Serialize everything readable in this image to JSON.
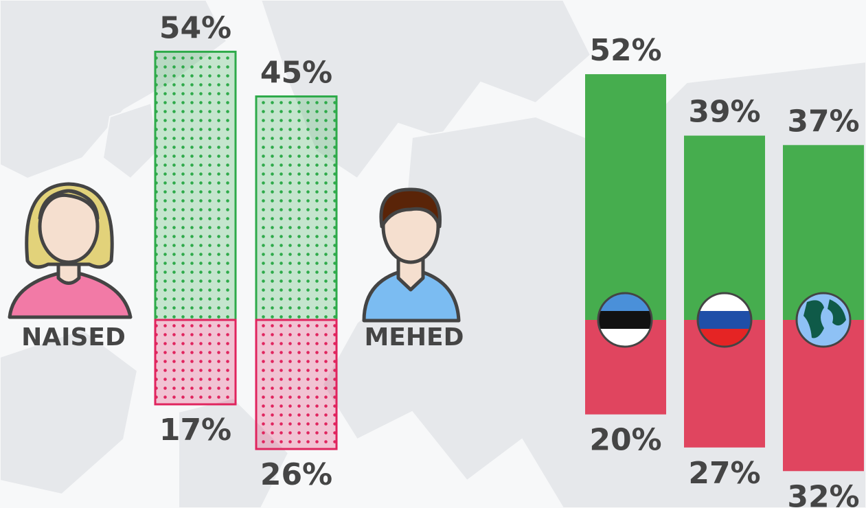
{
  "chart_data": [
    {
      "type": "bar",
      "diverging": true,
      "pattern": "dots",
      "categories": [
        "NAISED",
        "MEHED"
      ],
      "series": [
        {
          "color": "#2eaa4a",
          "values": [
            54,
            45
          ],
          "value_labels": [
            "54%",
            "45%"
          ]
        },
        {
          "color": "#e0245e",
          "values": [
            17,
            26
          ],
          "value_labels": [
            "17%",
            "26%"
          ]
        }
      ],
      "ylim": [
        0,
        60
      ]
    },
    {
      "type": "bar",
      "diverging": true,
      "categories": [
        null,
        null,
        null
      ],
      "series": [
        {
          "color": "#46ad4e",
          "values": [
            52,
            39,
            37
          ],
          "value_labels": [
            "52%",
            "39%",
            "37%"
          ]
        },
        {
          "color": "#e0455f",
          "values": [
            20,
            27,
            32
          ],
          "value_labels": [
            "20%",
            "27%",
            "32%"
          ]
        }
      ],
      "ylim": [
        0,
        60
      ]
    }
  ]
}
